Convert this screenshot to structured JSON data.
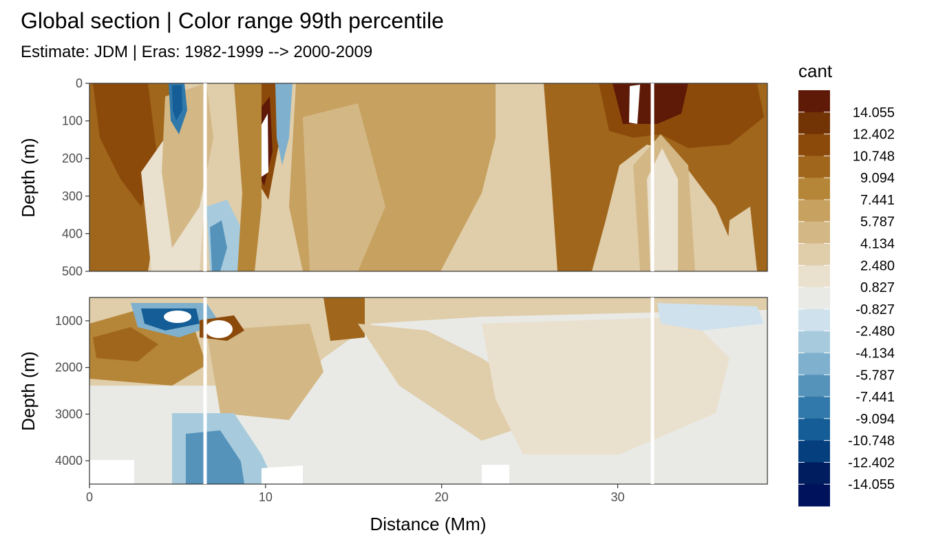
{
  "chart_data": {
    "type": "heatmap",
    "title": "Global section | Color range 99th percentile",
    "subtitle": "Estimate: JDM  | Eras: 1982-1999 --> 2000-2009",
    "xlabel": "Distance (Mm)",
    "ylabel": "Depth (m)",
    "xlim": [
      0,
      38.5
    ],
    "x_ticks": [
      "0",
      "10",
      "20",
      "30"
    ],
    "panels": [
      {
        "name": "upper",
        "ylim": [
          0,
          500
        ],
        "y_ticks": [
          "0",
          "100",
          "200",
          "300",
          "400",
          "500"
        ],
        "y_tick_values": [
          0,
          100,
          200,
          300,
          400,
          500
        ],
        "y_reversed": true
      },
      {
        "name": "lower",
        "ylim": [
          500,
          4500
        ],
        "y_ticks": [
          "1000",
          "2000",
          "3000",
          "4000"
        ],
        "y_tick_values": [
          1000,
          2000,
          3000,
          4000
        ],
        "y_reversed": true
      }
    ],
    "legend": {
      "title": "cant",
      "position": "right",
      "labels": [
        "14.055",
        "12.402",
        "10.748",
        "9.094",
        "7.441",
        "5.787",
        "4.134",
        "2.480",
        "0.827",
        "-0.827",
        "-2.480",
        "-4.134",
        "-5.787",
        "-7.441",
        "-9.094",
        "-10.748",
        "-12.402",
        "-14.055"
      ],
      "colors": [
        "#5e1a07",
        "#723305",
        "#8c4a0a",
        "#a0661c",
        "#b58638",
        "#c6a15f",
        "#d3b886",
        "#e0cdaa",
        "#eae0ce",
        "#e9eae6",
        "#cfe1ec",
        "#a7cbdd",
        "#7fb0cd",
        "#5693bb",
        "#3179aa",
        "#145d96",
        "#063f7d",
        "#001e5f",
        "#00125c"
      ]
    }
  }
}
